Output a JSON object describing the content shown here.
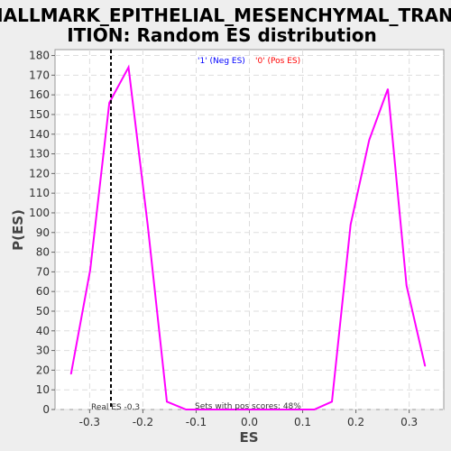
{
  "title_line1": "HALLMARK_EPITHELIAL_MESENCHYMAL_TRANS",
  "title_line2": "ITION: Random ES distribution",
  "colors": {
    "background": "#eeeeee",
    "plot_bg": "#ffffff",
    "series": "#ff00ff",
    "grid": "#dddddd",
    "neg_legend": "#0000ff",
    "pos_legend": "#ff0000",
    "real_es_line": "#000000"
  },
  "chart_data": {
    "type": "line",
    "title": "HALLMARK_EPITHELIAL_MESENCHYMAL_TRANSITION: Random ES distribution",
    "xlabel": "ES",
    "ylabel": "P(ES)",
    "xlim": [
      -0.365,
      0.365
    ],
    "ylim": [
      0,
      183
    ],
    "xticks": [
      -0.3,
      -0.2,
      -0.1,
      0.0,
      0.1,
      0.2,
      0.3
    ],
    "xtick_labels": [
      "-0.3",
      "-0.2",
      "-0.1",
      "0.0",
      "0.1",
      "0.2",
      "0.3"
    ],
    "yticks": [
      0,
      10,
      20,
      30,
      40,
      50,
      60,
      70,
      80,
      90,
      100,
      110,
      120,
      130,
      140,
      150,
      160,
      170,
      180
    ],
    "ytick_labels": [
      "0",
      "10",
      "20",
      "30",
      "40",
      "50",
      "60",
      "70",
      "80",
      "90",
      "100",
      "110",
      "120",
      "130",
      "140",
      "150",
      "160",
      "170",
      "180"
    ],
    "grid": true,
    "legend": [
      {
        "label": "'1' (Neg ES)",
        "color": "#0000ff"
      },
      {
        "label": "'0' (Pos ES)",
        "color": "#ff0000"
      }
    ],
    "series": [
      {
        "color": "#ff00ff",
        "x": [
          -0.335,
          -0.299,
          -0.263,
          -0.227,
          -0.191,
          -0.155,
          -0.119,
          -0.083,
          -0.047,
          -0.011,
          0.025,
          0.061,
          0.097,
          0.122,
          0.155,
          0.19,
          0.225,
          0.26,
          0.295,
          0.33
        ],
        "values": [
          18,
          71,
          156,
          174,
          94,
          4,
          0,
          0,
          0,
          0,
          0,
          0,
          0,
          0,
          4,
          94,
          137,
          163,
          63,
          22
        ]
      }
    ],
    "real_es": -0.26,
    "annotations": {
      "real_es": "Real ES -0.3",
      "pos_scores": "Sets with pos scores: 48%"
    }
  }
}
